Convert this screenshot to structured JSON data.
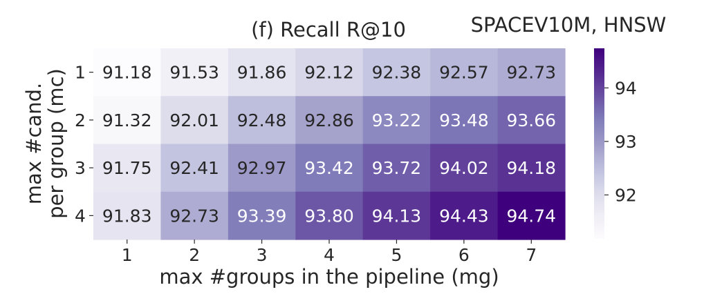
{
  "corner_label": "SPACEV10M, HNSW",
  "chart_data": {
    "type": "heatmap",
    "title": "(f) Recall R@10",
    "xlabel": "max #groups in the pipeline (mg)",
    "ylabel_lines": [
      "max #cand.",
      "per group (mc)"
    ],
    "x": [
      "1",
      "2",
      "3",
      "4",
      "5",
      "6",
      "7"
    ],
    "y": [
      "1",
      "2",
      "3",
      "4"
    ],
    "values": [
      [
        91.18,
        91.53,
        91.86,
        92.12,
        92.38,
        92.57,
        92.73
      ],
      [
        91.32,
        92.01,
        92.48,
        92.86,
        93.22,
        93.48,
        93.66
      ],
      [
        91.75,
        92.41,
        92.97,
        93.42,
        93.72,
        94.02,
        94.18
      ],
      [
        91.83,
        92.73,
        93.39,
        93.8,
        94.13,
        94.43,
        94.74
      ]
    ],
    "value_labels": [
      [
        "91.18",
        "91.53",
        "91.86",
        "92.12",
        "92.38",
        "92.57",
        "92.73"
      ],
      [
        "91.32",
        "92.01",
        "92.48",
        "92.86",
        "93.22",
        "93.48",
        "93.66"
      ],
      [
        "91.75",
        "92.41",
        "92.97",
        "93.42",
        "93.72",
        "94.02",
        "94.18"
      ],
      [
        "91.83",
        "92.73",
        "93.39",
        "93.80",
        "94.13",
        "94.43",
        "94.74"
      ]
    ],
    "colormap": "Purples",
    "color_range": [
      91.18,
      94.74
    ],
    "colorbar": {
      "ticks": [
        92,
        93,
        94
      ],
      "tick_labels": [
        "92",
        "93",
        "94"
      ]
    }
  }
}
